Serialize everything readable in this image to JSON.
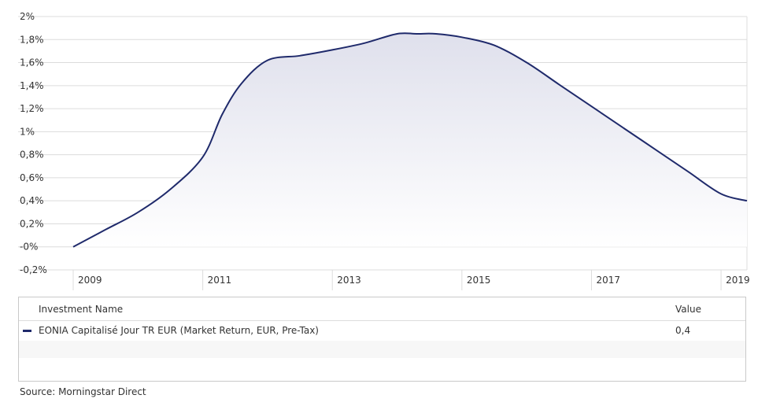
{
  "chart_data": {
    "type": "area",
    "x": [
      2009.0,
      2009.5,
      2010.0,
      2010.5,
      2011.0,
      2011.3,
      2011.6,
      2012.0,
      2012.5,
      2013.0,
      2013.5,
      2014.0,
      2014.3,
      2014.6,
      2015.0,
      2015.5,
      2016.0,
      2016.5,
      2017.0,
      2017.5,
      2018.0,
      2018.5,
      2019.0,
      2019.4
    ],
    "values": [
      0.0,
      0.15,
      0.3,
      0.5,
      0.78,
      1.15,
      1.42,
      1.62,
      1.66,
      1.71,
      1.77,
      1.85,
      1.85,
      1.85,
      1.82,
      1.75,
      1.6,
      1.41,
      1.22,
      1.03,
      0.84,
      0.65,
      0.46,
      0.4
    ],
    "series": [
      {
        "name": "EONIA Capitalisé Jour TR EUR (Market Return, EUR, Pre-Tax)",
        "color": "#1f2a6b"
      }
    ],
    "y_ticks": [
      {
        "value": -0.2,
        "label": "-0,2%"
      },
      {
        "value": 0.0,
        "label": "-0%"
      },
      {
        "value": 0.2,
        "label": "0,2%"
      },
      {
        "value": 0.4,
        "label": "0,4%"
      },
      {
        "value": 0.6,
        "label": "0,6%"
      },
      {
        "value": 0.8,
        "label": "0,8%"
      },
      {
        "value": 1.0,
        "label": "1%"
      },
      {
        "value": 1.2,
        "label": "1,2%"
      },
      {
        "value": 1.4,
        "label": "1,4%"
      },
      {
        "value": 1.6,
        "label": "1,6%"
      },
      {
        "value": 1.8,
        "label": "1,8%"
      },
      {
        "value": 2.0,
        "label": "2%"
      }
    ],
    "x_ticks": [
      {
        "value": 2009,
        "label": "2009"
      },
      {
        "value": 2011,
        "label": "2011"
      },
      {
        "value": 2013,
        "label": "2013"
      },
      {
        "value": 2015,
        "label": "2015"
      },
      {
        "value": 2017,
        "label": "2017"
      },
      {
        "value": 2019,
        "label": "2019"
      }
    ],
    "xlim": [
      2009.0,
      2019.4
    ],
    "ylim": [
      -0.2,
      2.0
    ],
    "grid": true
  },
  "legend": {
    "header_name": "Investment Name",
    "header_value": "Value",
    "rows": [
      {
        "name": "EONIA Capitalisé Jour TR EUR (Market Return, EUR, Pre-Tax)",
        "value": "0,4"
      }
    ]
  },
  "source": "Source: Morningstar Direct"
}
